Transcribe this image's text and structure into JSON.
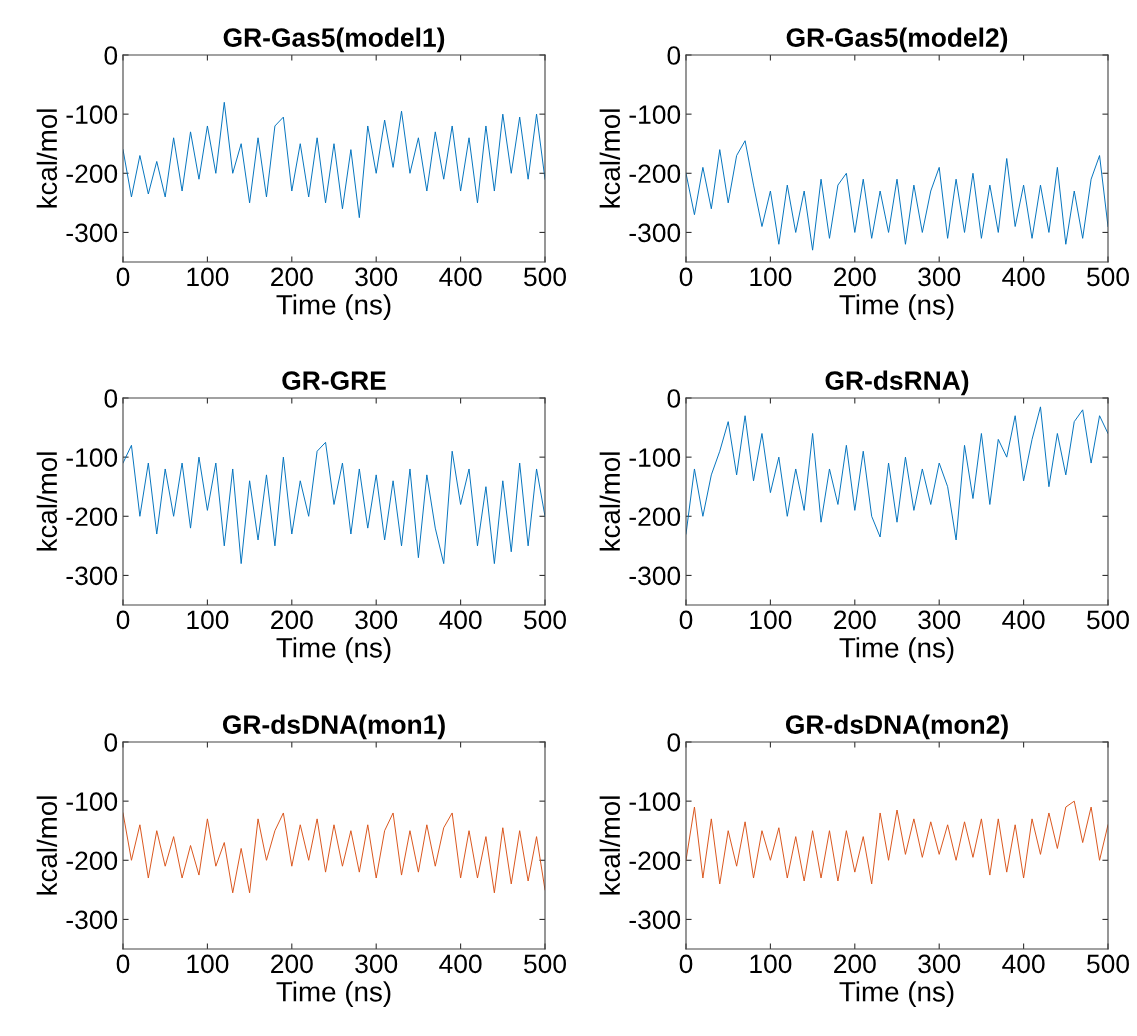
{
  "chart_data": [
    {
      "type": "line",
      "title": "GR-Gas5(model1)",
      "xlabel": "Time (ns)",
      "ylabel": "kcal/mol",
      "xlim": [
        0,
        500
      ],
      "ylim": [
        -350,
        0
      ],
      "xticks": [
        0,
        100,
        200,
        300,
        400,
        500
      ],
      "yticks": [
        0,
        -100,
        -200,
        -300
      ],
      "series": [
        {
          "color": "#0072bd",
          "x": [
            0,
            10,
            20,
            30,
            40,
            50,
            60,
            70,
            80,
            90,
            100,
            110,
            120,
            130,
            140,
            150,
            160,
            170,
            180,
            190,
            200,
            210,
            220,
            230,
            240,
            250,
            260,
            270,
            280,
            290,
            300,
            310,
            320,
            330,
            340,
            350,
            360,
            370,
            380,
            390,
            400,
            410,
            420,
            430,
            440,
            450,
            460,
            470,
            480,
            490,
            500
          ],
          "values": [
            -160,
            -240,
            -170,
            -235,
            -180,
            -240,
            -140,
            -230,
            -130,
            -210,
            -120,
            -200,
            -80,
            -200,
            -150,
            -250,
            -140,
            -240,
            -120,
            -105,
            -230,
            -150,
            -240,
            -140,
            -250,
            -150,
            -260,
            -160,
            -275,
            -120,
            -200,
            -110,
            -190,
            -95,
            -200,
            -140,
            -230,
            -130,
            -210,
            -120,
            -230,
            -140,
            -250,
            -120,
            -230,
            -100,
            -200,
            -105,
            -210,
            -100,
            -210
          ]
        }
      ]
    },
    {
      "type": "line",
      "title": "GR-Gas5(model2)",
      "xlabel": "Time (ns)",
      "ylabel": "kcal/mol",
      "xlim": [
        0,
        500
      ],
      "ylim": [
        -350,
        0
      ],
      "xticks": [
        0,
        100,
        200,
        300,
        400,
        500
      ],
      "yticks": [
        0,
        -100,
        -200,
        -300
      ],
      "series": [
        {
          "color": "#0072bd",
          "x": [
            0,
            10,
            20,
            30,
            40,
            50,
            60,
            70,
            80,
            90,
            100,
            110,
            120,
            130,
            140,
            150,
            160,
            170,
            180,
            190,
            200,
            210,
            220,
            230,
            240,
            250,
            260,
            270,
            280,
            290,
            300,
            310,
            320,
            330,
            340,
            350,
            360,
            370,
            380,
            390,
            400,
            410,
            420,
            430,
            440,
            450,
            460,
            470,
            480,
            490,
            500
          ],
          "values": [
            -200,
            -270,
            -190,
            -260,
            -160,
            -250,
            -170,
            -145,
            -220,
            -290,
            -230,
            -320,
            -220,
            -300,
            -230,
            -330,
            -210,
            -310,
            -220,
            -200,
            -300,
            -210,
            -310,
            -230,
            -300,
            -210,
            -320,
            -220,
            -300,
            -230,
            -190,
            -310,
            -210,
            -300,
            -200,
            -310,
            -220,
            -300,
            -175,
            -290,
            -220,
            -310,
            -220,
            -300,
            -190,
            -320,
            -230,
            -310,
            -210,
            -170,
            -290
          ]
        }
      ]
    },
    {
      "type": "line",
      "title": "GR-GRE",
      "xlabel": "Time (ns)",
      "ylabel": "kcal/mol",
      "xlim": [
        0,
        500
      ],
      "ylim": [
        -350,
        0
      ],
      "xticks": [
        0,
        100,
        200,
        300,
        400,
        500
      ],
      "yticks": [
        0,
        -100,
        -200,
        -300
      ],
      "series": [
        {
          "color": "#0072bd",
          "x": [
            0,
            10,
            20,
            30,
            40,
            50,
            60,
            70,
            80,
            90,
            100,
            110,
            120,
            130,
            140,
            150,
            160,
            170,
            180,
            190,
            200,
            210,
            220,
            230,
            240,
            250,
            260,
            270,
            280,
            290,
            300,
            310,
            320,
            330,
            340,
            350,
            360,
            370,
            380,
            390,
            400,
            410,
            420,
            430,
            440,
            450,
            460,
            470,
            480,
            490,
            500
          ],
          "values": [
            -110,
            -80,
            -200,
            -110,
            -230,
            -120,
            -200,
            -110,
            -220,
            -100,
            -190,
            -110,
            -250,
            -120,
            -280,
            -140,
            -240,
            -130,
            -250,
            -100,
            -230,
            -140,
            -200,
            -90,
            -75,
            -180,
            -110,
            -230,
            -120,
            -220,
            -130,
            -240,
            -140,
            -250,
            -120,
            -270,
            -130,
            -220,
            -280,
            -90,
            -180,
            -120,
            -250,
            -150,
            -280,
            -140,
            -260,
            -110,
            -250,
            -120,
            -200
          ]
        }
      ]
    },
    {
      "type": "line",
      "title": "GR-dsRNA)",
      "xlabel": "Time (ns)",
      "ylabel": "kcal/mol",
      "xlim": [
        0,
        500
      ],
      "ylim": [
        -350,
        0
      ],
      "xticks": [
        0,
        100,
        200,
        300,
        400,
        500
      ],
      "yticks": [
        0,
        -100,
        -200,
        -300
      ],
      "series": [
        {
          "color": "#0072bd",
          "x": [
            0,
            10,
            20,
            30,
            40,
            50,
            60,
            70,
            80,
            90,
            100,
            110,
            120,
            130,
            140,
            150,
            160,
            170,
            180,
            190,
            200,
            210,
            220,
            230,
            240,
            250,
            260,
            270,
            280,
            290,
            300,
            310,
            320,
            330,
            340,
            350,
            360,
            370,
            380,
            390,
            400,
            410,
            420,
            430,
            440,
            450,
            460,
            470,
            480,
            490,
            500
          ],
          "values": [
            -230,
            -120,
            -200,
            -130,
            -90,
            -40,
            -130,
            -30,
            -140,
            -60,
            -160,
            -100,
            -200,
            -120,
            -190,
            -60,
            -210,
            -120,
            -180,
            -80,
            -190,
            -90,
            -200,
            -235,
            -110,
            -210,
            -100,
            -190,
            -120,
            -180,
            -110,
            -150,
            -240,
            -80,
            -170,
            -60,
            -180,
            -70,
            -100,
            -30,
            -140,
            -70,
            -15,
            -150,
            -60,
            -130,
            -40,
            -20,
            -110,
            -30,
            -60
          ]
        }
      ]
    },
    {
      "type": "line",
      "title": "GR-dsDNA(mon1)",
      "xlabel": "Time (ns)",
      "ylabel": "kcal/mol",
      "xlim": [
        0,
        500
      ],
      "ylim": [
        -350,
        0
      ],
      "xticks": [
        0,
        100,
        200,
        300,
        400,
        500
      ],
      "yticks": [
        0,
        -100,
        -200,
        -300
      ],
      "series": [
        {
          "color": "#d95319",
          "x": [
            0,
            10,
            20,
            30,
            40,
            50,
            60,
            70,
            80,
            90,
            100,
            110,
            120,
            130,
            140,
            150,
            160,
            170,
            180,
            190,
            200,
            210,
            220,
            230,
            240,
            250,
            260,
            270,
            280,
            290,
            300,
            310,
            320,
            330,
            340,
            350,
            360,
            370,
            380,
            390,
            400,
            410,
            420,
            430,
            440,
            450,
            460,
            470,
            480,
            490,
            500
          ],
          "values": [
            -120,
            -200,
            -140,
            -230,
            -150,
            -210,
            -160,
            -230,
            -175,
            -225,
            -130,
            -210,
            -170,
            -255,
            -180,
            -255,
            -130,
            -200,
            -150,
            -120,
            -210,
            -140,
            -200,
            -130,
            -220,
            -140,
            -210,
            -150,
            -220,
            -140,
            -230,
            -150,
            -120,
            -225,
            -150,
            -220,
            -140,
            -210,
            -145,
            -120,
            -230,
            -150,
            -230,
            -160,
            -255,
            -145,
            -240,
            -150,
            -235,
            -160,
            -250
          ]
        }
      ]
    },
    {
      "type": "line",
      "title": "GR-dsDNA(mon2)",
      "xlabel": "Time (ns)",
      "ylabel": "kcal/mol",
      "xlim": [
        0,
        500
      ],
      "ylim": [
        -350,
        0
      ],
      "xticks": [
        0,
        100,
        200,
        300,
        400,
        500
      ],
      "yticks": [
        0,
        -100,
        -200,
        -300
      ],
      "series": [
        {
          "color": "#d95319",
          "x": [
            0,
            10,
            20,
            30,
            40,
            50,
            60,
            70,
            80,
            90,
            100,
            110,
            120,
            130,
            140,
            150,
            160,
            170,
            180,
            190,
            200,
            210,
            220,
            230,
            240,
            250,
            260,
            270,
            280,
            290,
            300,
            310,
            320,
            330,
            340,
            350,
            360,
            370,
            380,
            390,
            400,
            410,
            420,
            430,
            440,
            450,
            460,
            470,
            480,
            490,
            500
          ],
          "values": [
            -200,
            -110,
            -230,
            -130,
            -240,
            -150,
            -210,
            -135,
            -230,
            -150,
            -200,
            -145,
            -230,
            -160,
            -235,
            -150,
            -230,
            -150,
            -235,
            -150,
            -220,
            -160,
            -240,
            -120,
            -200,
            -115,
            -190,
            -130,
            -195,
            -135,
            -190,
            -140,
            -200,
            -135,
            -195,
            -130,
            -225,
            -130,
            -220,
            -140,
            -230,
            -130,
            -190,
            -120,
            -180,
            -110,
            -100,
            -170,
            -110,
            -200,
            -140
          ]
        }
      ]
    }
  ]
}
